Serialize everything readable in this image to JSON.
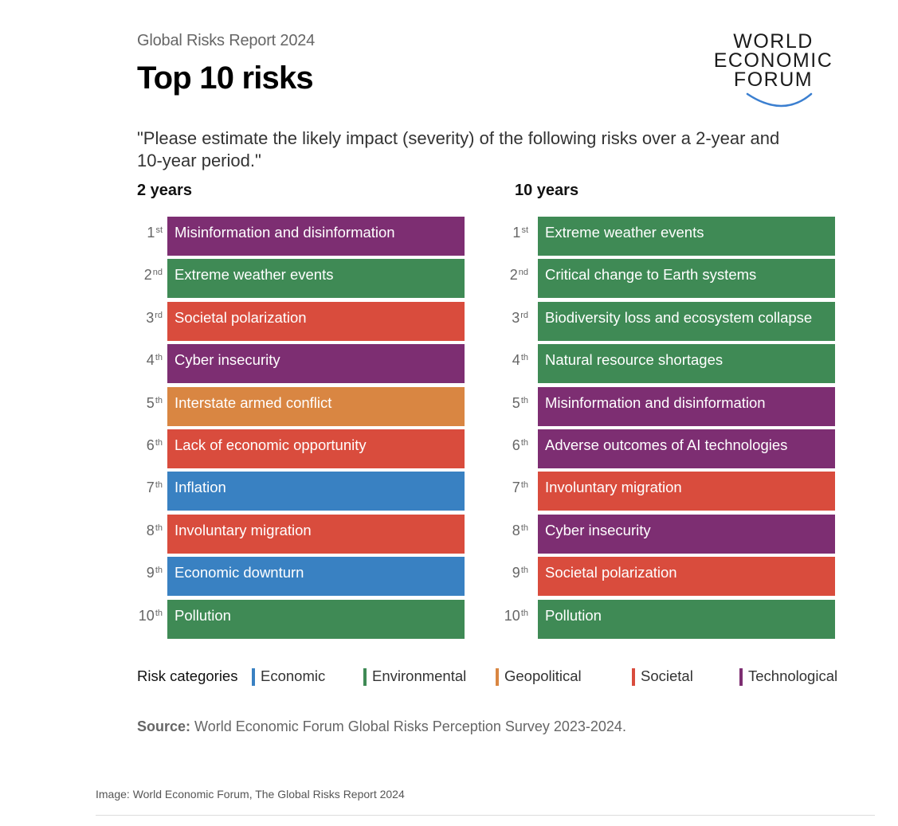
{
  "header": {
    "kicker": "Global Risks Report 2024",
    "title": "Top 10 risks",
    "question": "\"Please estimate the likely impact (severity) of the following risks over a 2-year and 10-year period.\""
  },
  "logo": {
    "lines": [
      "WORLD",
      "ECONOMIC",
      "FORUM"
    ],
    "arc_color": "#3b7fd0"
  },
  "colors": {
    "Economic": "#3981c2",
    "Environmental": "#3f8a55",
    "Geopolitical": "#d98642",
    "Societal": "#d94c3d",
    "Technological": "#7d2e72"
  },
  "columns": [
    {
      "title": "2 years",
      "items": [
        {
          "rank": "1",
          "suffix": "st",
          "label": "Misinformation and disinformation",
          "category": "Technological"
        },
        {
          "rank": "2",
          "suffix": "nd",
          "label": "Extreme weather events",
          "category": "Environmental"
        },
        {
          "rank": "3",
          "suffix": "rd",
          "label": "Societal polarization",
          "category": "Societal"
        },
        {
          "rank": "4",
          "suffix": "th",
          "label": "Cyber insecurity",
          "category": "Technological"
        },
        {
          "rank": "5",
          "suffix": "th",
          "label": "Interstate armed conflict",
          "category": "Geopolitical"
        },
        {
          "rank": "6",
          "suffix": "th",
          "label": "Lack of economic opportunity",
          "category": "Societal"
        },
        {
          "rank": "7",
          "suffix": "th",
          "label": "Inflation",
          "category": "Economic"
        },
        {
          "rank": "8",
          "suffix": "th",
          "label": "Involuntary migration",
          "category": "Societal"
        },
        {
          "rank": "9",
          "suffix": "th",
          "label": "Economic downturn",
          "category": "Economic"
        },
        {
          "rank": "10",
          "suffix": "th",
          "label": "Pollution",
          "category": "Environmental"
        }
      ]
    },
    {
      "title": "10 years",
      "items": [
        {
          "rank": "1",
          "suffix": "st",
          "label": "Extreme weather events",
          "category": "Environmental"
        },
        {
          "rank": "2",
          "suffix": "nd",
          "label": "Critical change to Earth systems",
          "category": "Environmental"
        },
        {
          "rank": "3",
          "suffix": "rd",
          "label": "Biodiversity loss and ecosystem collapse",
          "category": "Environmental"
        },
        {
          "rank": "4",
          "suffix": "th",
          "label": "Natural resource shortages",
          "category": "Environmental"
        },
        {
          "rank": "5",
          "suffix": "th",
          "label": "Misinformation and disinformation",
          "category": "Technological"
        },
        {
          "rank": "6",
          "suffix": "th",
          "label": "Adverse outcomes of AI technologies",
          "category": "Technological"
        },
        {
          "rank": "7",
          "suffix": "th",
          "label": "Involuntary migration",
          "category": "Societal"
        },
        {
          "rank": "8",
          "suffix": "th",
          "label": "Cyber insecurity",
          "category": "Technological"
        },
        {
          "rank": "9",
          "suffix": "th",
          "label": "Societal polarization",
          "category": "Societal"
        },
        {
          "rank": "10",
          "suffix": "th",
          "label": "Pollution",
          "category": "Environmental"
        }
      ]
    }
  ],
  "legend": {
    "label": "Risk categories",
    "items": [
      "Economic",
      "Environmental",
      "Geopolitical",
      "Societal",
      "Technological"
    ]
  },
  "source": {
    "label": "Source:",
    "text": " World Economic Forum Global Risks Perception Survey 2023-2024."
  },
  "credit": "Image: World Economic Forum, The Global Risks Report 2024"
}
